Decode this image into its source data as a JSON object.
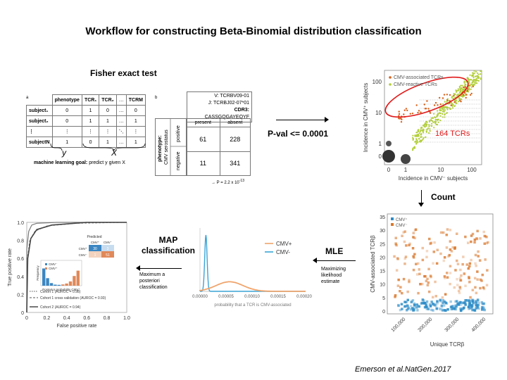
{
  "title": "Workflow for constructing Beta-Binomial distribution classification",
  "fisher": {
    "heading": "Fisher exact test",
    "panel_a": {
      "letter": "a",
      "headers": [
        "",
        "phenotype",
        "TCR₁",
        "TCR₂",
        "…",
        "TCRM"
      ],
      "rows": [
        [
          "subject₁",
          "0",
          "1",
          "0",
          "…",
          "0"
        ],
        [
          "subject₂",
          "0",
          "1",
          "1",
          "…",
          "1"
        ],
        [
          "⋮",
          "⋮",
          "⋮",
          "⋮",
          "⋱",
          "⋮"
        ],
        [
          "subjectN",
          "1",
          "0",
          "1",
          "…",
          "1"
        ]
      ],
      "y_label": "y",
      "x_label": "X",
      "goal_bold": "machine learning goal:",
      "goal_text": " predict y given X"
    },
    "panel_b": {
      "letter": "b",
      "v_line": "V: TCRBV09-01",
      "j_line": "J: TCRBJ02-07*01",
      "cdr3_label": "CDR3:",
      "cdr3_value": "CASSGQGAYEQYF",
      "col_present": "present",
      "col_absent": "absent",
      "row_label_1": "phenotype:",
      "row_label_2": "CMV serostatus",
      "row_positive": "positive",
      "row_negative": "negative",
      "values": [
        [
          "61",
          "228"
        ],
        [
          "11",
          "341"
        ]
      ],
      "pvalue": "→ P = 2.2 x 10",
      "pvalue_exp": "-13"
    }
  },
  "pval_step": "P-val <= 0.0001",
  "count_step": "Count",
  "mle_step": "MLE",
  "mle_note": "Maximizing likelihood estimate",
  "map_step": "MAP classification",
  "map_note": "Maximum a posteriori classification",
  "citation": "Emerson et al.NatGen.2017",
  "scatter1": {
    "legend": [
      "CMV-associated TCRs",
      "CMV-reactive TCRs"
    ],
    "ylabel": "Incidence in CMV⁺ subjects",
    "xlabel": "Incidence in CMV⁻ subjects",
    "yticks": [
      "100",
      "10",
      "1",
      "0"
    ],
    "xticks": [
      "0",
      "1",
      "10",
      "100"
    ],
    "callout": "164 TCRs",
    "colors": {
      "associated": "#d8621c",
      "reactive": "#b2cf3a",
      "callout": "#e11a1a"
    }
  },
  "scatter2": {
    "legend": [
      "CMV⁺",
      "CMV⁻"
    ],
    "ylabel": "CMV-associated TCRβ",
    "xlabel": "Unique TCRβ",
    "yticks": [
      "35",
      "30",
      "25",
      "20",
      "15",
      "10",
      "5",
      "0"
    ],
    "xticks": [
      "100,000",
      "200,000",
      "300,000",
      "400,000"
    ],
    "colors": {
      "pos": "#2d8cc7",
      "neg": "#d9772c"
    }
  },
  "density": {
    "legend": [
      "CMV+",
      "CMV-"
    ],
    "xlabel": "probability that a TCR is CMV-associated",
    "xticks": [
      "0.00000",
      "0.00005",
      "0.00010",
      "0.00015",
      "0.00020"
    ],
    "colors": {
      "pos": "#f0a46b",
      "neg": "#3aa3d6"
    }
  },
  "roc": {
    "ylabel": "True positive rate",
    "xlabel": "False positive rate",
    "yticks": [
      "1.0",
      "0.8",
      "0.6",
      "0.4",
      "0.2",
      "0"
    ],
    "xticks": [
      "0",
      "0.2",
      "0.4",
      "0.6",
      "0.8",
      "1.0"
    ],
    "legend": [
      "Cohort 1 (AUROC = 0.98)",
      "Cohort 1 cross validation (AUROC = 0.93)",
      "Cohort 2 (AUROC = 0.94)"
    ],
    "inset_title": "Predicted",
    "inset_cols": [
      "CMV⁺",
      "CMV⁻"
    ],
    "inset_rows": [
      "CMV⁺",
      "CMV⁻"
    ],
    "inset_vals": [
      [
        "30",
        "3"
      ],
      [
        "1",
        "51"
      ]
    ],
    "hist_legend": [
      "CMV⁻",
      "CMV⁺"
    ],
    "hist_xlabel": "Posterior probability CMV⁺",
    "hist_ylabel": "Frequency"
  }
}
